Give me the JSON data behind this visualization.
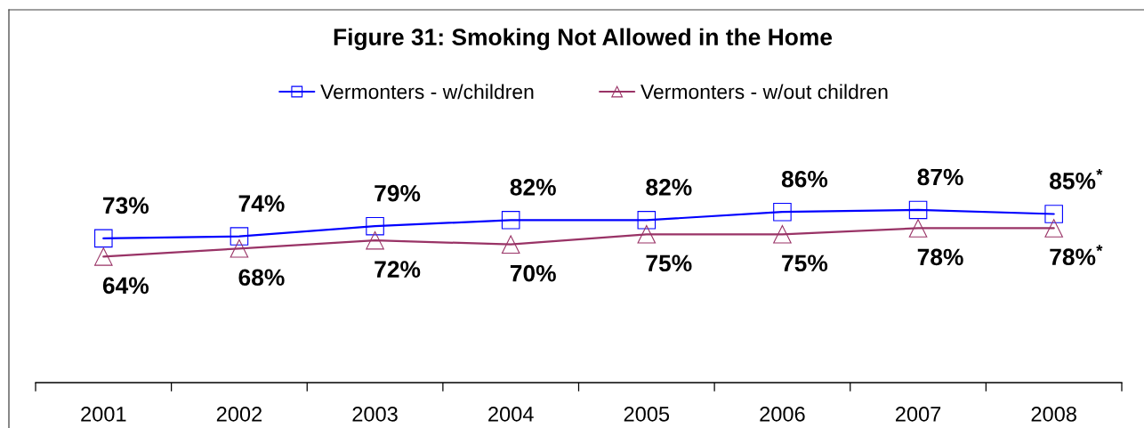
{
  "chart_data": {
    "type": "line",
    "title": "Figure 31: Smoking Not Allowed in the Home",
    "categories": [
      "2001",
      "2002",
      "2003",
      "2004",
      "2005",
      "2006",
      "2007",
      "2008"
    ],
    "series": [
      {
        "name": "Vermonters - w/children",
        "color": "#0000ff",
        "marker": "square",
        "values": [
          73,
          74,
          79,
          82,
          82,
          86,
          87,
          85
        ],
        "value_labels": [
          "73%",
          "74%",
          "79%",
          "82%",
          "82%",
          "86%",
          "87%",
          "85%$^{*}$"
        ]
      },
      {
        "name": "Vermonters - w/out children",
        "color": "#993366",
        "marker": "triangle",
        "values": [
          64,
          68,
          72,
          70,
          75,
          75,
          78,
          78
        ],
        "value_labels": [
          "64%",
          "68%",
          "72%",
          "70%",
          "75%",
          "75%",
          "78%",
          "78%$^{*}$"
        ]
      }
    ],
    "tick_labels": "x",
    "legend": "top",
    "grid": false,
    "line_style": "solid"
  }
}
